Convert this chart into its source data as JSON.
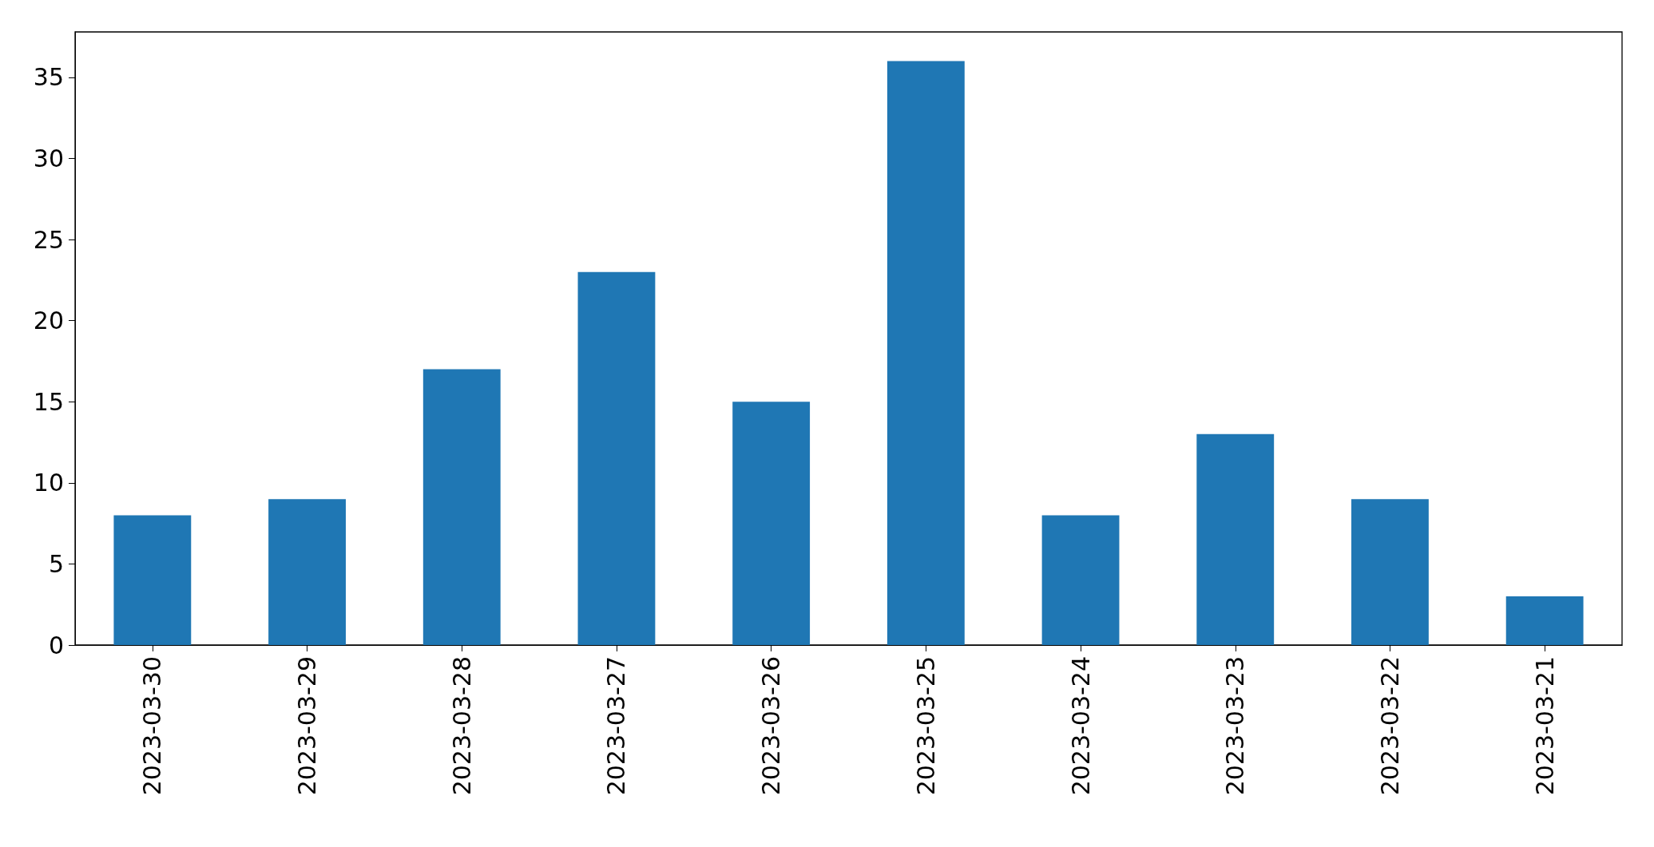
{
  "chart_data": {
    "type": "bar",
    "categories": [
      "2023-03-30",
      "2023-03-29",
      "2023-03-28",
      "2023-03-27",
      "2023-03-26",
      "2023-03-25",
      "2023-03-24",
      "2023-03-23",
      "2023-03-22",
      "2023-03-21"
    ],
    "values": [
      8,
      9,
      17,
      23,
      15,
      36,
      8,
      13,
      9,
      3
    ],
    "color": "#1f77b4",
    "ylim": [
      0,
      37.8
    ],
    "yticks": [
      0,
      5,
      10,
      15,
      20,
      25,
      30,
      35
    ],
    "grid": false
  }
}
